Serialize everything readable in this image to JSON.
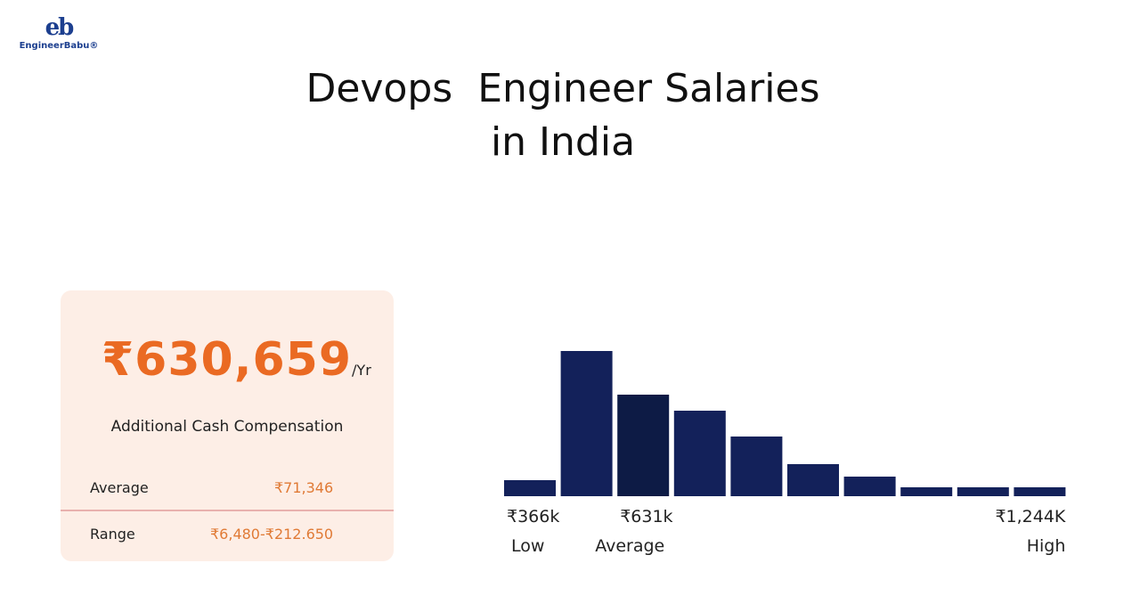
{
  "logo": {
    "mark": "eb",
    "text": "EngineerBabu®"
  },
  "title": [
    "Devops  Engineer Salaries",
    "in India"
  ],
  "card": {
    "salary": "₹630,659",
    "per": "/Yr",
    "additional_label": "Additional Cash Compensation",
    "average_label": "Average",
    "average_value": "₹71,346",
    "range_label": "Range",
    "range_value": "₹6,480-₹212.650"
  },
  "colors": {
    "accent": "#ea6a23",
    "bar": "#13215a",
    "bar_highlight": "#0d1b45",
    "card_bg": "#fdeee6"
  },
  "chart_data": {
    "type": "bar",
    "categories": [
      "1",
      "2",
      "3",
      "4",
      "5",
      "6",
      "7",
      "8",
      "9",
      "10"
    ],
    "values": [
      18,
      163,
      114,
      96,
      67,
      36,
      22,
      10,
      10,
      10
    ],
    "highlight_index": 2,
    "tick_labels": [
      {
        "value": "₹366k",
        "label": "Low",
        "bar": 0
      },
      {
        "value": "₹631k",
        "label": "Average",
        "bar": 2
      },
      {
        "value": "₹1,244K",
        "label": "High",
        "bar": 9
      }
    ],
    "grid": false,
    "xlabel": "",
    "ylabel": ""
  }
}
